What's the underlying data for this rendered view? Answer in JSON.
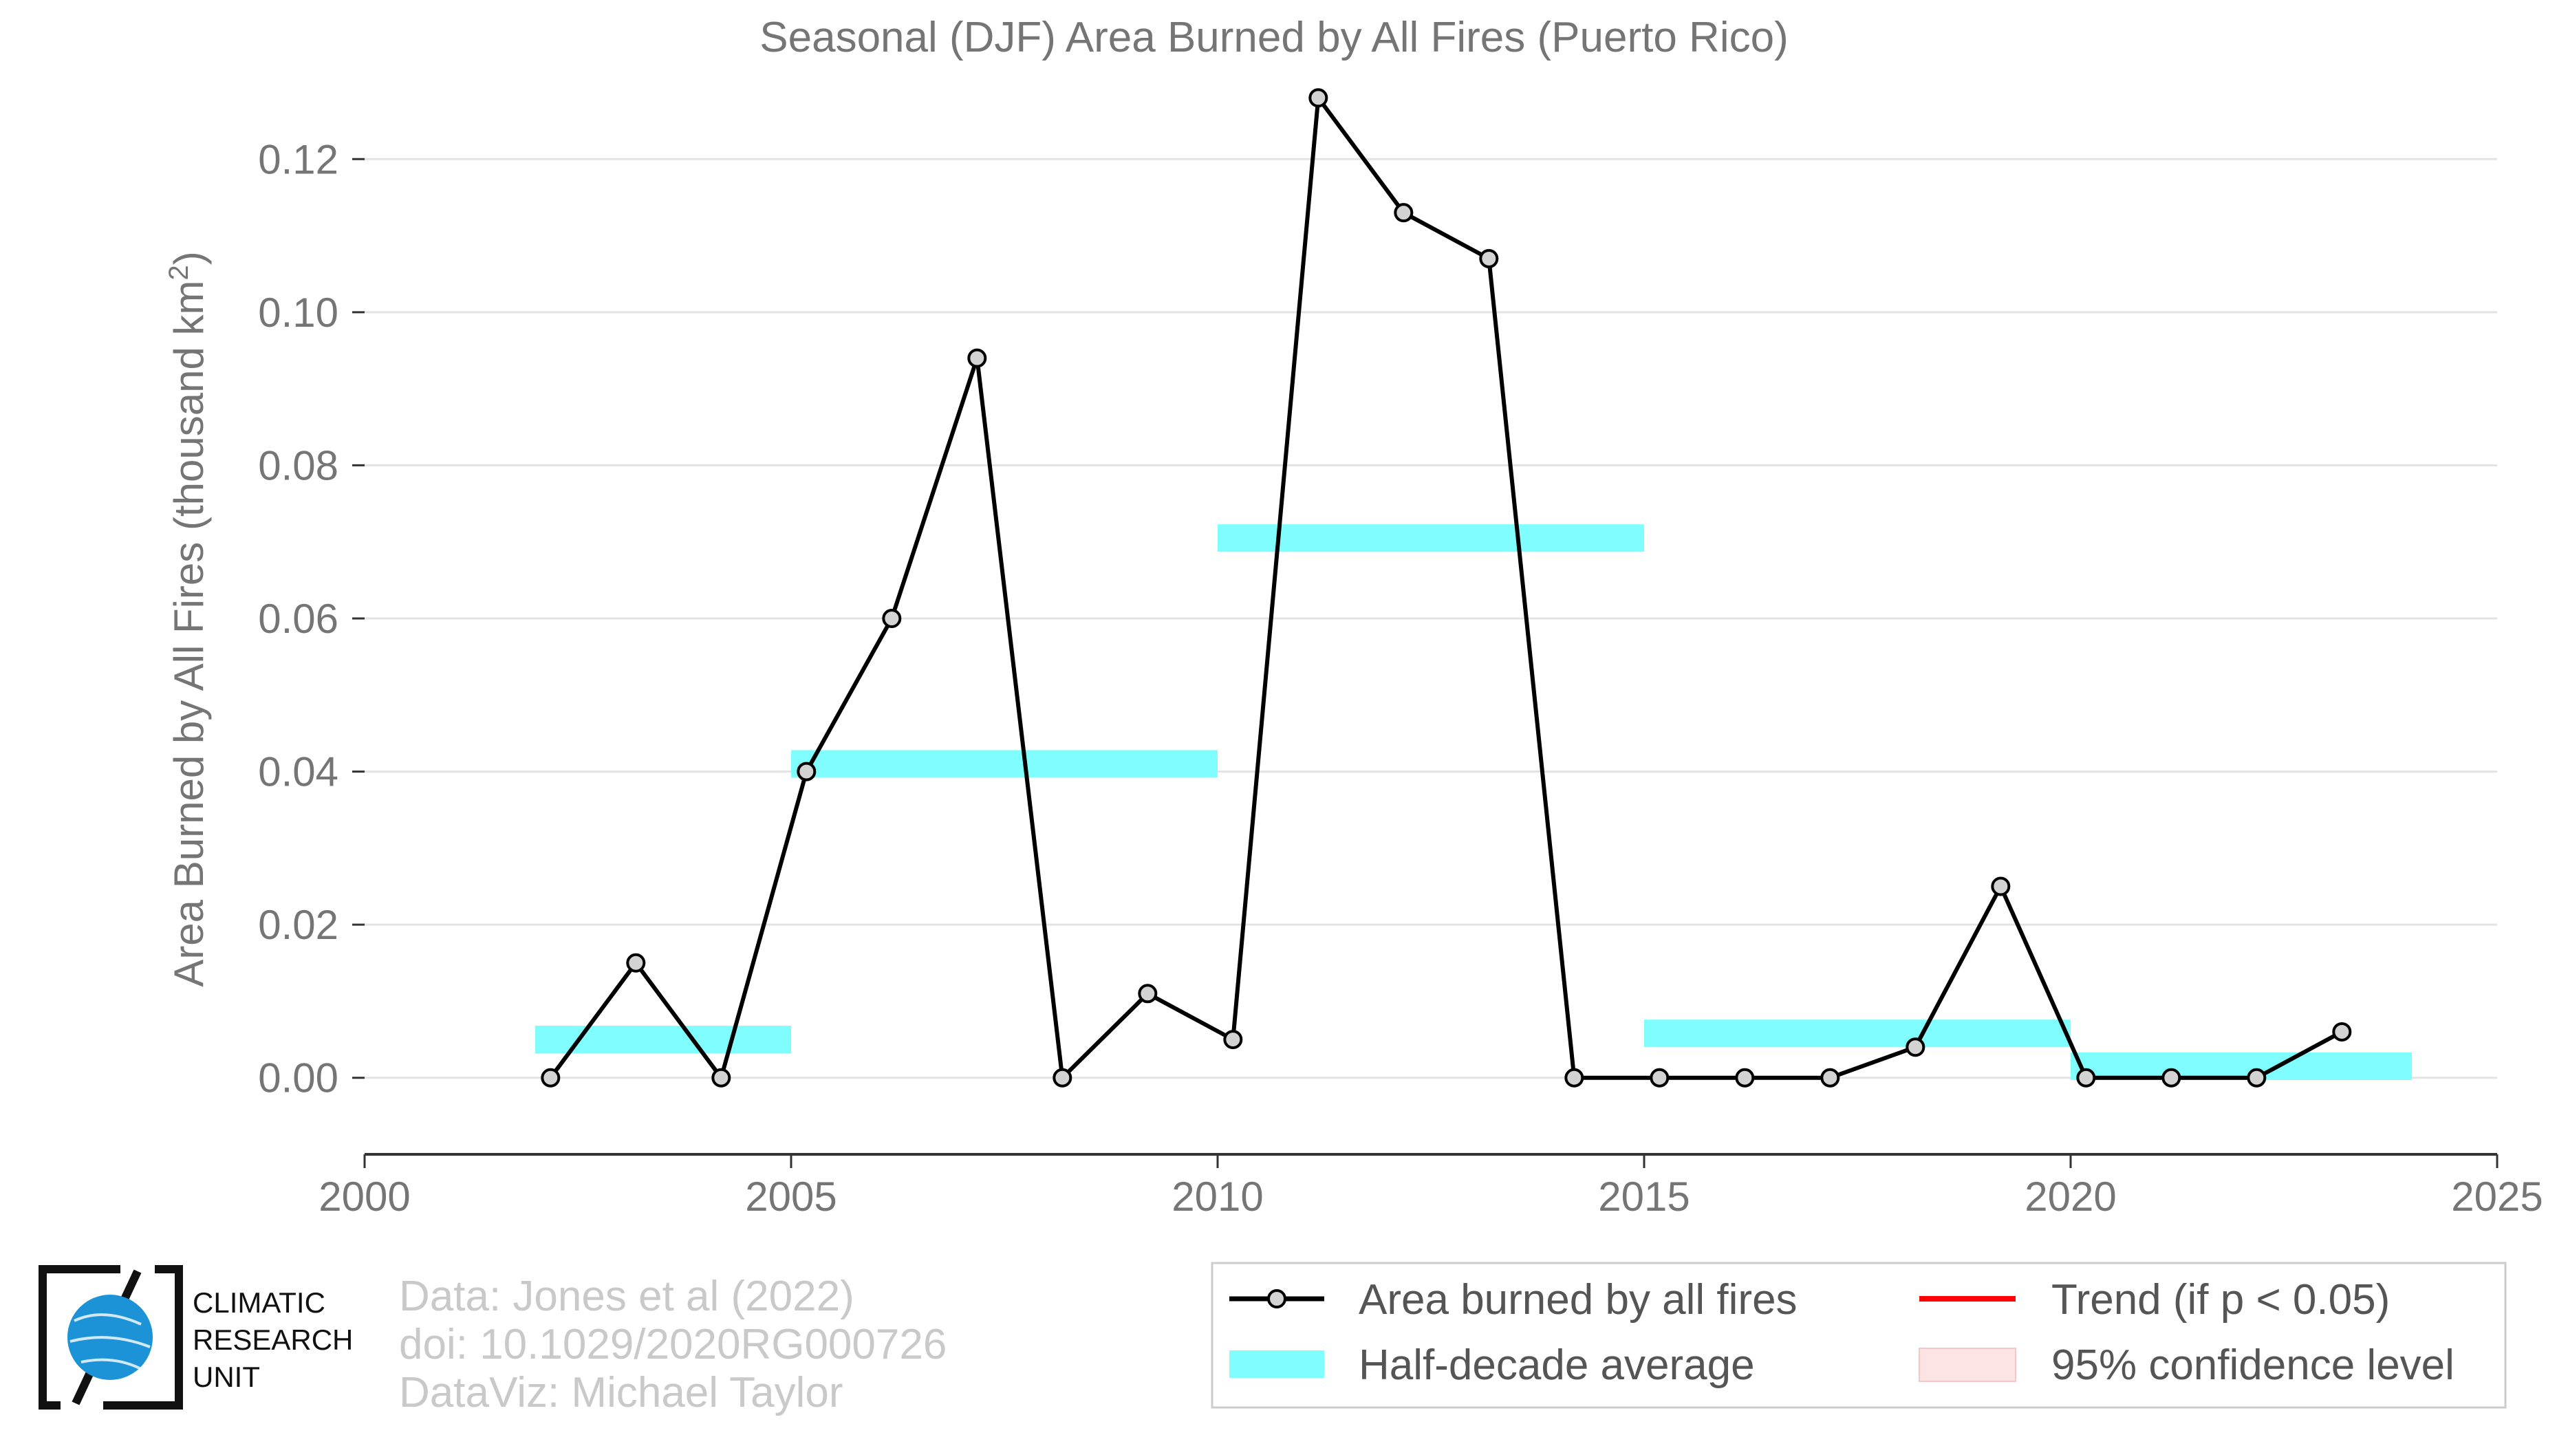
{
  "chart_data": {
    "type": "line",
    "title": "Seasonal (DJF) Area Burned by All Fires (Puerto Rico)",
    "ylabel_main": "Area Burned by All Fires (thousand km",
    "ylabel_sup": "2",
    "ylabel_close": ")",
    "xlim": [
      2000,
      2025
    ],
    "ylim": [
      -0.01,
      0.13
    ],
    "x_ticks": [
      "2000",
      "2005",
      "2010",
      "2015",
      "2020",
      "2025"
    ],
    "y_ticks": [
      "0.00",
      "0.02",
      "0.04",
      "0.06",
      "0.08",
      "0.10",
      "0.12"
    ],
    "grid": true,
    "series": [
      {
        "name": "Area burned by all fires",
        "color": "#000000",
        "marker_fill": "#d3d3d3",
        "x": [
          2002,
          2003,
          2004,
          2005,
          2006,
          2007,
          2008,
          2009,
          2010,
          2011,
          2012,
          2013,
          2014,
          2015,
          2016,
          2017,
          2018,
          2019,
          2020,
          2021,
          2022,
          2023
        ],
        "y": [
          0.0,
          0.015,
          0.0,
          0.04,
          0.06,
          0.094,
          0.0,
          0.011,
          0.005,
          0.128,
          0.113,
          0.107,
          0.0,
          0.0,
          0.0,
          0.0,
          0.004,
          0.025,
          0.0,
          0.0,
          0.0,
          0.006
        ]
      }
    ],
    "half_decade_average": {
      "name": "Half-decade average",
      "color": "#7ffdff",
      "segments": [
        {
          "x_start": 2002,
          "x_end": 2005,
          "value": 0.005
        },
        {
          "x_start": 2005,
          "x_end": 2010,
          "value": 0.041
        },
        {
          "x_start": 2010,
          "x_end": 2015,
          "value": 0.0705
        },
        {
          "x_start": 2015,
          "x_end": 2020,
          "value": 0.0058
        },
        {
          "x_start": 2020,
          "x_end": 2024,
          "value": 0.0015
        }
      ]
    },
    "legend": {
      "placement": "bottom-right",
      "entries": [
        {
          "label": "Area burned by all fires",
          "kind": "line-marker",
          "color": "#000000"
        },
        {
          "label": "Trend (if p < 0.05)",
          "kind": "line",
          "color": "#ff0000"
        },
        {
          "label": "Half-decade average",
          "kind": "band",
          "color": "#7ffdff"
        },
        {
          "label": "95% confidence level",
          "kind": "patch",
          "color": "#fde4e4"
        }
      ]
    }
  },
  "credits": {
    "line1": "Data: Jones et al (2022)",
    "line2": "doi: 10.1029/2020RG000726",
    "line3": "DataViz: Michael Taylor"
  },
  "logo": {
    "line1": "CLIMATIC",
    "line2": "RESEARCH",
    "line3": "UNIT",
    "globe_color": "#1b93d6"
  }
}
